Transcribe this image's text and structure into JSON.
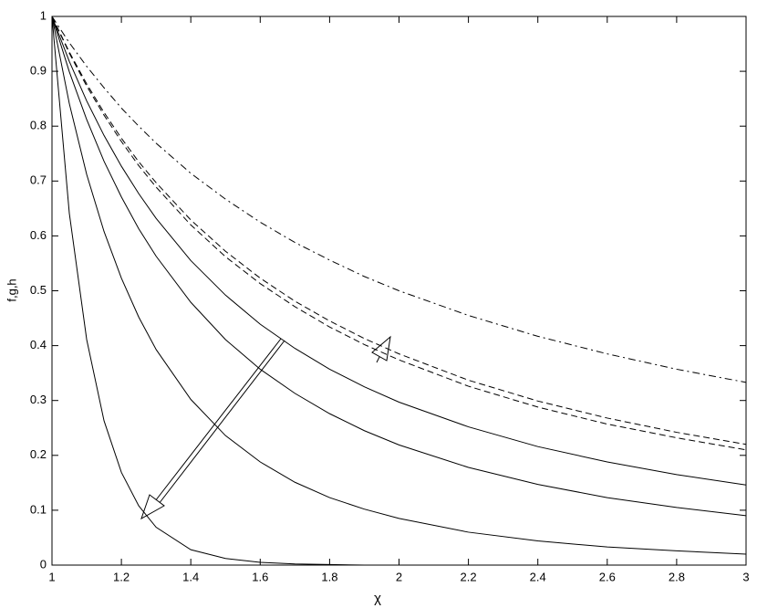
{
  "chart_data": {
    "type": "line",
    "x_label": "χ",
    "y_label": "f,g,h",
    "x": [
      1,
      1.05,
      1.1,
      1.15,
      1.2,
      1.25,
      1.3,
      1.4,
      1.5,
      1.6,
      1.7,
      1.8,
      1.9,
      2,
      2.2,
      2.4,
      2.6,
      2.8,
      3
    ],
    "series": [
      {
        "color": "#000000",
        "linestyle": "dashdot",
        "values": [
          1,
          0.952,
          0.909,
          0.87,
          0.833,
          0.8,
          0.769,
          0.714,
          0.667,
          0.625,
          0.588,
          0.556,
          0.526,
          0.5,
          0.455,
          0.417,
          0.385,
          0.357,
          0.333
        ]
      },
      {
        "color": "#000000",
        "linestyle": "dashed",
        "values": [
          1,
          0.935,
          0.877,
          0.825,
          0.778,
          0.735,
          0.697,
          0.629,
          0.572,
          0.523,
          0.481,
          0.445,
          0.413,
          0.385,
          0.337,
          0.299,
          0.268,
          0.242,
          0.22
        ]
      },
      {
        "color": "#000000",
        "linestyle": "dashed",
        "values": [
          1,
          0.933,
          0.873,
          0.82,
          0.772,
          0.728,
          0.689,
          0.62,
          0.562,
          0.513,
          0.471,
          0.434,
          0.402,
          0.374,
          0.326,
          0.288,
          0.257,
          0.232,
          0.21
        ]
      },
      {
        "color": "#000000",
        "linestyle": "solid",
        "values": [
          1,
          0.918,
          0.846,
          0.783,
          0.727,
          0.677,
          0.632,
          0.555,
          0.492,
          0.439,
          0.395,
          0.357,
          0.325,
          0.297,
          0.252,
          0.216,
          0.188,
          0.165,
          0.146
        ]
      },
      {
        "color": "#000000",
        "linestyle": "solid",
        "values": [
          1,
          0.899,
          0.812,
          0.736,
          0.671,
          0.613,
          0.563,
          0.479,
          0.411,
          0.357,
          0.313,
          0.276,
          0.245,
          0.219,
          0.178,
          0.147,
          0.123,
          0.105,
          0.09
        ]
      },
      {
        "color": "#000000",
        "linestyle": "solid",
        "values": [
          1,
          0.841,
          0.712,
          0.608,
          0.523,
          0.452,
          0.393,
          0.302,
          0.236,
          0.188,
          0.151,
          0.123,
          0.102,
          0.085,
          0.06,
          0.044,
          0.033,
          0.026,
          0.02
        ]
      },
      {
        "color": "#000000",
        "linestyle": "solid",
        "values": [
          1,
          0.641,
          0.411,
          0.263,
          0.169,
          0.108,
          0.069,
          0.028,
          0.012,
          0.005,
          0.002,
          0.001,
          0,
          0,
          0,
          0,
          0,
          0,
          0
        ]
      }
    ],
    "xlim": [
      1,
      3
    ],
    "xticks": [
      1,
      1.2,
      1.4,
      1.6,
      1.8,
      2,
      2.2,
      2.4,
      2.6,
      2.8,
      3
    ],
    "ylim": [
      0,
      1
    ],
    "yticks": [
      0,
      0.1,
      0.2,
      0.3,
      0.4,
      0.5,
      0.6,
      0.7,
      0.8,
      0.9,
      1
    ],
    "grid": false
  }
}
